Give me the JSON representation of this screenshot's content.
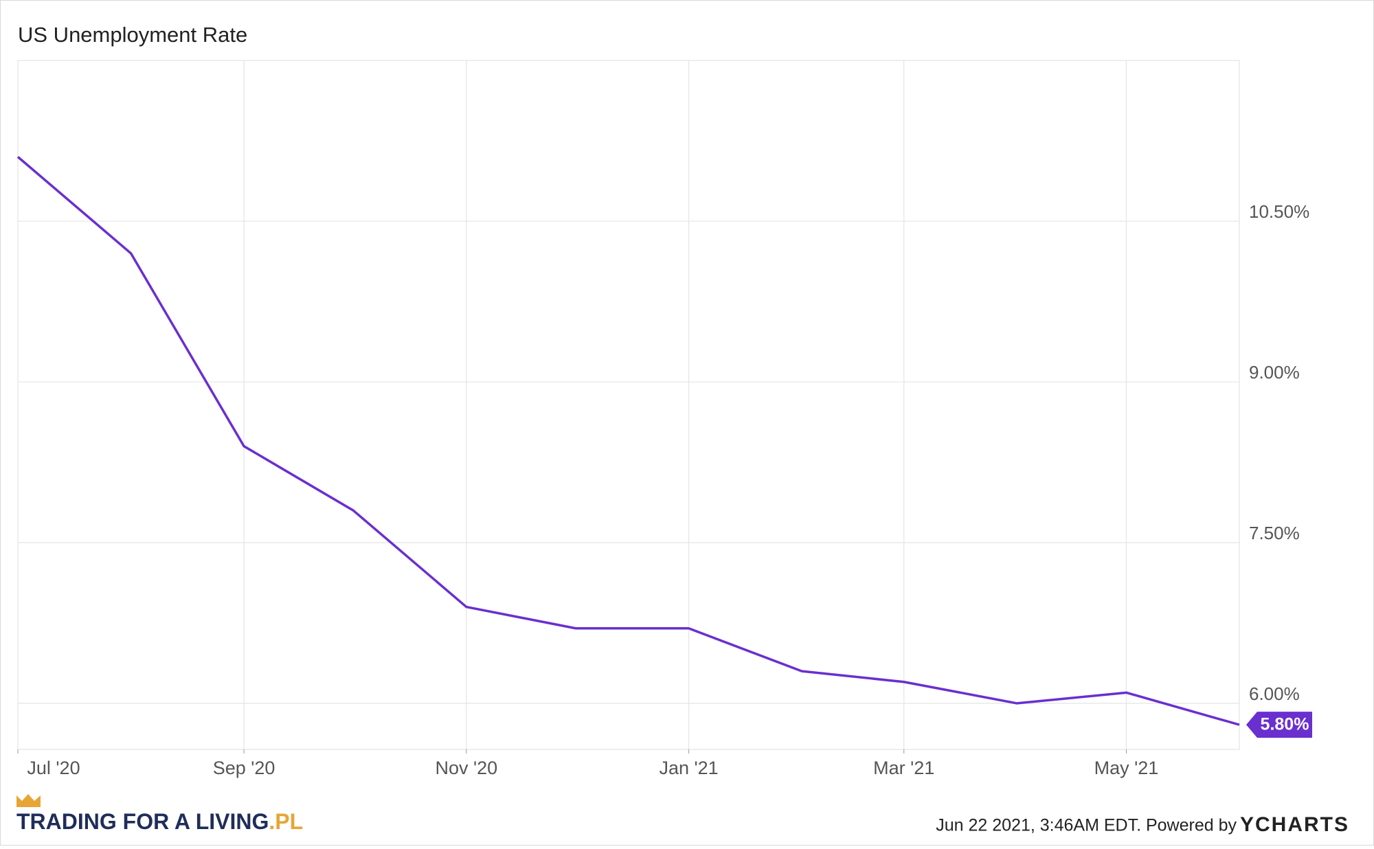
{
  "chart_data": {
    "type": "line",
    "title": "US Unemployment Rate",
    "x": [
      "2020-07",
      "2020-08",
      "2020-09",
      "2020-10",
      "2020-11",
      "2020-12",
      "2021-01",
      "2021-02",
      "2021-03",
      "2021-04",
      "2021-05",
      "2021-06"
    ],
    "series": [
      {
        "name": "US Unemployment Rate",
        "color": "#6a2fcf",
        "values": [
          11.1,
          10.2,
          8.4,
          7.8,
          6.9,
          6.7,
          6.7,
          6.3,
          6.2,
          6.0,
          6.1,
          5.8
        ],
        "value_labels": [
          null,
          null,
          null,
          null,
          null,
          null,
          null,
          null,
          null,
          null,
          null,
          "5.80%"
        ]
      }
    ],
    "xlim": [
      "2020-07",
      "2021-06"
    ],
    "xticks": [
      {
        "value": "2020-07",
        "label": "Jul '20"
      },
      {
        "value": "2020-09",
        "label": "Sep '20"
      },
      {
        "value": "2020-11",
        "label": "Nov '20"
      },
      {
        "value": "2021-01",
        "label": "Jan '21"
      },
      {
        "value": "2021-03",
        "label": "Mar '21"
      },
      {
        "value": "2021-05",
        "label": "May '21"
      }
    ],
    "ylim": [
      5.57,
      12
    ],
    "yticks": [
      {
        "value": 6,
        "label": "6.00%"
      },
      {
        "value": 7.5,
        "label": "7.50%"
      },
      {
        "value": 9,
        "label": "9.00%"
      },
      {
        "value": 10.5,
        "label": "10.50%"
      }
    ],
    "grid": true,
    "source": "Jun 22 2021, 3:46AM EDT. Powered by",
    "source_brand": "YCHARTS",
    "branding": "TRADING FOR A LIVING",
    "branding_suffix": ".PL"
  }
}
